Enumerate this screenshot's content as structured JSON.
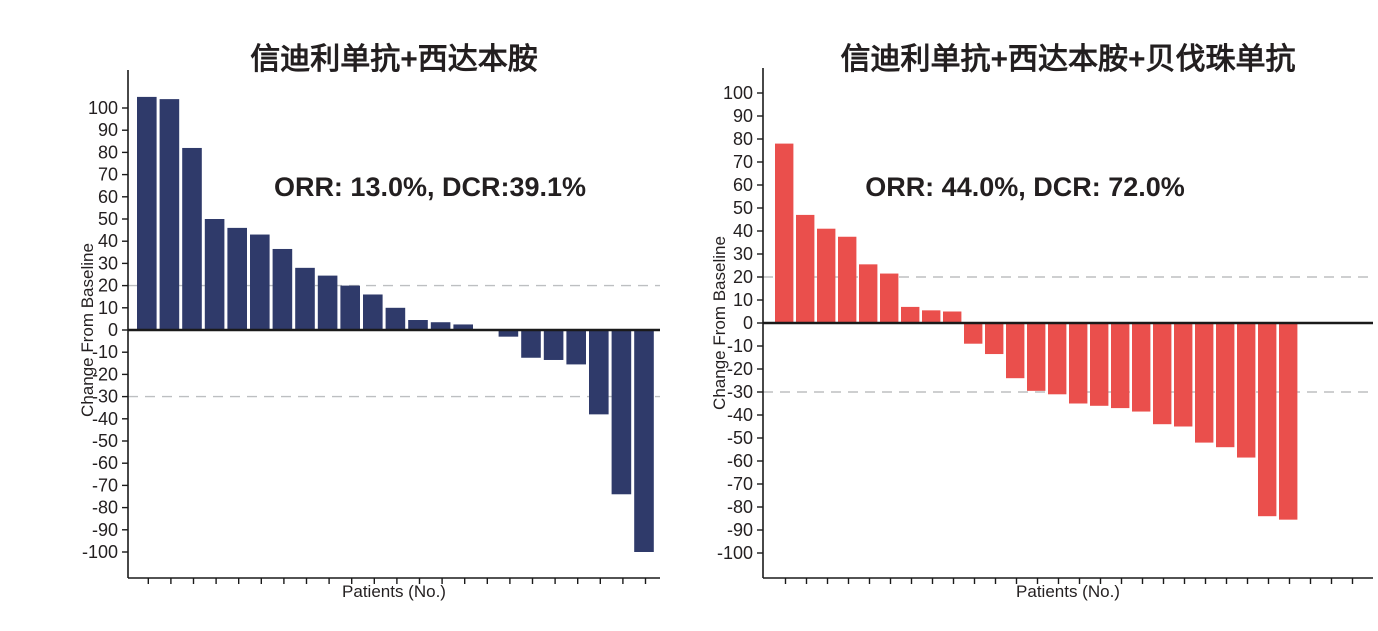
{
  "figure": {
    "background": "#ffffff",
    "text_color": "#231f20"
  },
  "chart_data": [
    {
      "type": "bar",
      "title": "信迪利单抗+西达本胺",
      "annotation": "ORR: 13.0%, DCR:39.1%",
      "xlabel": "Patients (No.)",
      "ylabel": "Change From Baseline",
      "bar_color": "#2f3a6a",
      "axis_color": "#1a1a1a",
      "ref_line_color": "#bdbfc1",
      "ref_lines": [
        20,
        -30
      ],
      "ylim": [
        -100,
        100
      ],
      "ytick_step": 10,
      "grid": false,
      "legend_position": "none",
      "values": [
        105,
        104,
        82,
        50,
        46,
        43,
        36.5,
        28,
        24.5,
        20,
        16,
        10,
        4.5,
        3.5,
        2.5,
        0,
        -3,
        -12.5,
        -13.5,
        -15.5,
        -38,
        -74,
        -100
      ]
    },
    {
      "type": "bar",
      "title": "信迪利单抗+西达本胺+贝伐珠单抗",
      "annotation": "ORR: 44.0%, DCR: 72.0%",
      "xlabel": "Patients (No.)",
      "ylabel": "Change From Baseline",
      "bar_color": "#ea4f4c",
      "axis_color": "#1a1a1a",
      "ref_line_color": "#bdbfc1",
      "ref_lines": [
        20,
        -30
      ],
      "ylim": [
        -100,
        100
      ],
      "ytick_step": 10,
      "grid": false,
      "legend_position": "none",
      "values": [
        78,
        47,
        41,
        37.5,
        25.5,
        21.5,
        7,
        5.5,
        5,
        -9,
        -13.5,
        -24,
        -29.5,
        -31,
        -35,
        -36,
        -37,
        -38.5,
        -44,
        -45,
        -52,
        -54,
        -58.5,
        -84,
        -85.5
      ]
    }
  ]
}
